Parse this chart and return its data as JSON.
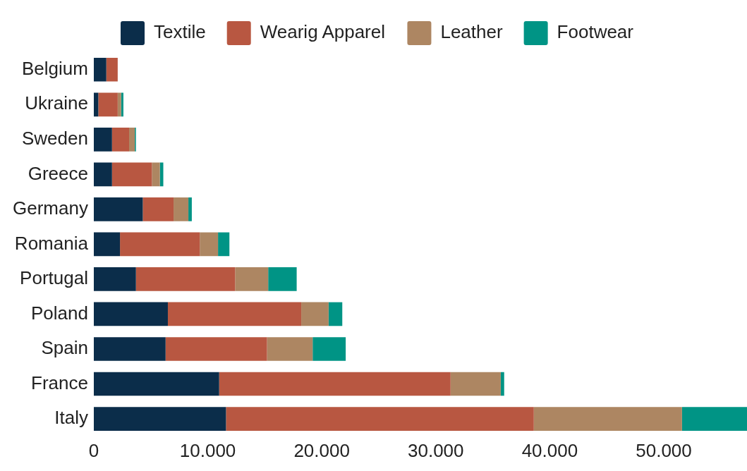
{
  "chart_data": {
    "type": "bar",
    "orientation": "horizontal",
    "stacked": true,
    "legend": "top",
    "grid": false,
    "categories": [
      "Belgium",
      "Ukraine",
      "Sweden",
      "Greece",
      "Germany",
      "Romania",
      "Portugal",
      "Poland",
      "Spain",
      "France",
      "Italy"
    ],
    "series": [
      {
        "name": "Textile",
        "color": "#0b2d4a",
        "values": [
          1100,
          400,
          1600,
          1600,
          4300,
          2300,
          3700,
          6500,
          6300,
          11000,
          11600
        ]
      },
      {
        "name": "Wearig Apparel",
        "color": "#b85741",
        "values": [
          1000,
          1700,
          1500,
          3500,
          2700,
          7000,
          8700,
          11700,
          8900,
          20300,
          27000
        ]
      },
      {
        "name": "Leather",
        "color": "#ad8662",
        "values": [
          null,
          300,
          500,
          700,
          1300,
          1600,
          2900,
          2400,
          4000,
          4400,
          13000
        ]
      },
      {
        "name": "Footwear",
        "color": "#009485",
        "values": [
          null,
          200,
          100,
          300,
          300,
          1000,
          2500,
          1200,
          2900,
          300,
          5700
        ]
      }
    ],
    "xlim": [
      0,
      57300
    ],
    "xticks": [
      0,
      {
        "value": 10000,
        "label": "10.000"
      },
      {
        "value": 20000,
        "label": "20.000"
      },
      {
        "value": 30000,
        "label": "30.000"
      },
      {
        "value": 40000,
        "label": "40.000"
      },
      {
        "value": 50000,
        "label": "50.000"
      }
    ]
  }
}
